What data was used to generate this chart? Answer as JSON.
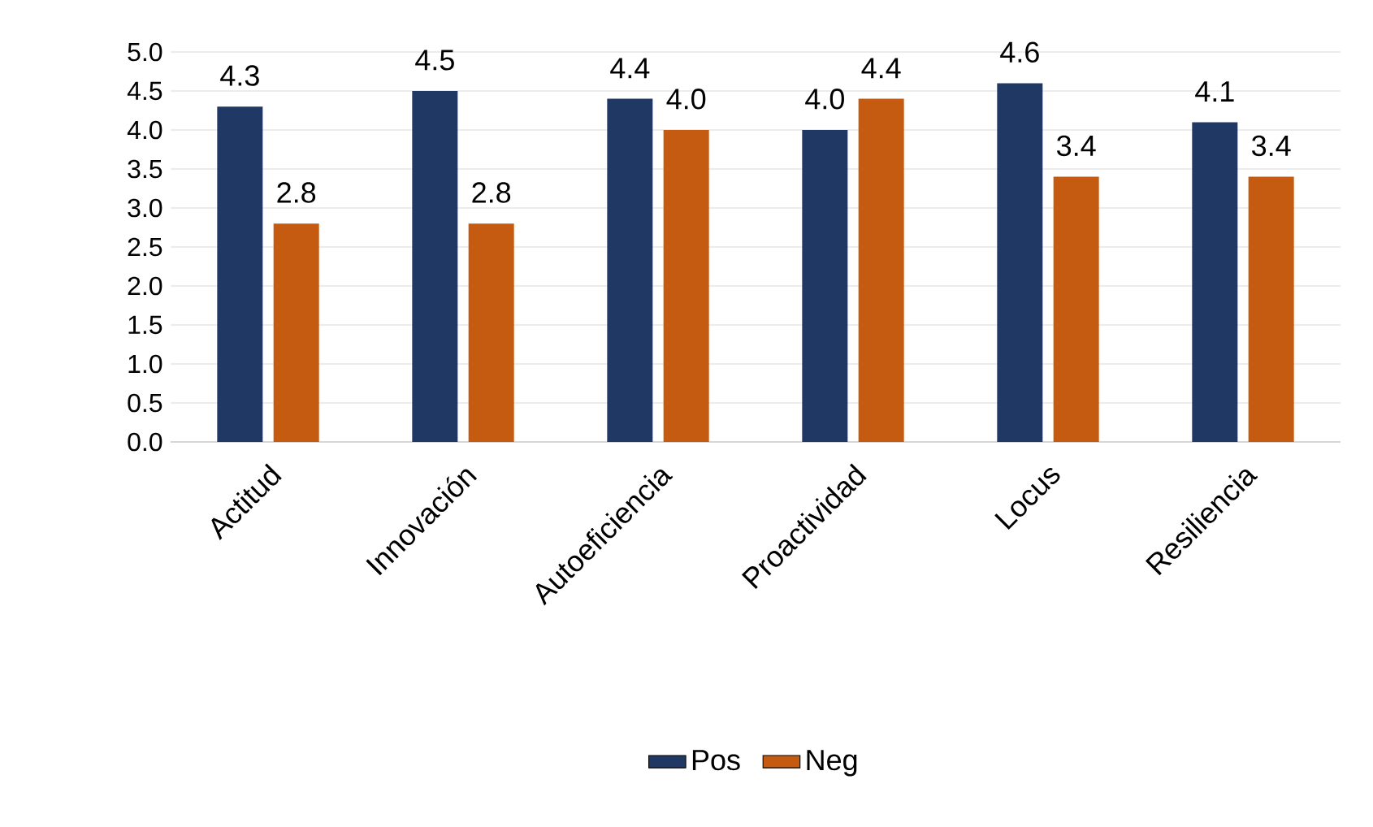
{
  "chart_data": {
    "type": "bar",
    "categories": [
      "Actitud",
      "Innovación",
      "Autoeficiencia",
      "Proactividad",
      "Locus",
      "Resiliencia"
    ],
    "series": [
      {
        "name": "Pos",
        "color": "#203864",
        "values": [
          4.3,
          4.5,
          4.4,
          4.0,
          4.6,
          4.1
        ],
        "value_labels": [
          "4.3",
          "4.5",
          "4.4",
          "4.0",
          "4.6",
          "4.1"
        ]
      },
      {
        "name": "Neg",
        "color": "#c55a11",
        "values": [
          2.8,
          2.8,
          4.0,
          4.4,
          3.4,
          3.4
        ],
        "value_labels": [
          "2.8",
          "2.8",
          "4.0",
          "4.4",
          "3.4",
          "3.4"
        ]
      }
    ],
    "ylim": [
      0,
      5
    ],
    "yticks": [
      {
        "value": 0,
        "label": "0.0"
      },
      {
        "value": 0.5,
        "label": "0.5"
      },
      {
        "value": 1,
        "label": "1.0"
      },
      {
        "value": 1.5,
        "label": "1.5"
      },
      {
        "value": 2,
        "label": "2.0"
      },
      {
        "value": 2.5,
        "label": "2.5"
      },
      {
        "value": 3,
        "label": "3.0"
      },
      {
        "value": 3.5,
        "label": "3.5"
      },
      {
        "value": 4,
        "label": "4.0"
      },
      {
        "value": 4.5,
        "label": "4.5"
      },
      {
        "value": 5,
        "label": "5.0"
      }
    ],
    "grid": "y",
    "legend": "bottom"
  }
}
